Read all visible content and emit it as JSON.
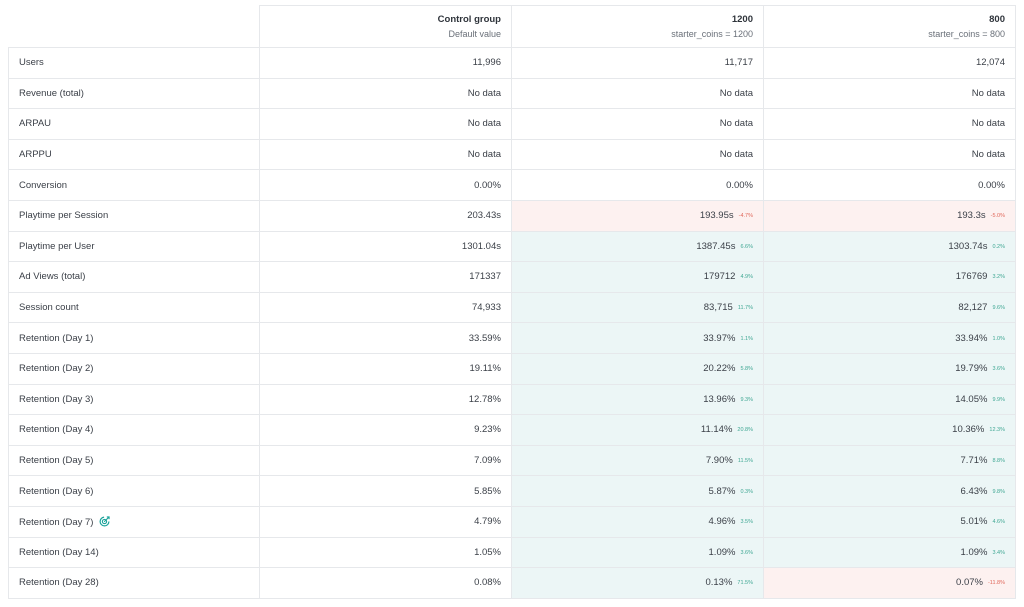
{
  "columns": [
    {
      "title": "Control group",
      "subtitle": "Default value"
    },
    {
      "title": "1200",
      "subtitle": "starter_coins = 1200"
    },
    {
      "title": "800",
      "subtitle": "starter_coins = 800"
    }
  ],
  "rows": [
    {
      "metric": "Users",
      "control": "11,996",
      "v1": "11,717",
      "d1": "",
      "s1": "",
      "v2": "12,074",
      "d2": "",
      "s2": ""
    },
    {
      "metric": "Revenue (total)",
      "control": "No data",
      "v1": "No data",
      "d1": "",
      "s1": "",
      "v2": "No data",
      "d2": "",
      "s2": ""
    },
    {
      "metric": "ARPAU",
      "control": "No data",
      "v1": "No data",
      "d1": "",
      "s1": "",
      "v2": "No data",
      "d2": "",
      "s2": ""
    },
    {
      "metric": "ARPPU",
      "control": "No data",
      "v1": "No data",
      "d1": "",
      "s1": "",
      "v2": "No data",
      "d2": "",
      "s2": ""
    },
    {
      "metric": "Conversion",
      "control": "0.00%",
      "v1": "0.00%",
      "d1": "",
      "s1": "",
      "v2": "0.00%",
      "d2": "",
      "s2": ""
    },
    {
      "metric": "Playtime per Session",
      "control": "203.43s",
      "v1": "193.95s",
      "d1": "-4.7%",
      "s1": "neg",
      "v2": "193.3s",
      "d2": "-5.0%",
      "s2": "neg"
    },
    {
      "metric": "Playtime per User",
      "control": "1301.04s",
      "v1": "1387.45s",
      "d1": "6.6%",
      "s1": "pos",
      "v2": "1303.74s",
      "d2": "0.2%",
      "s2": "pos"
    },
    {
      "metric": "Ad Views (total)",
      "control": "171337",
      "v1": "179712",
      "d1": "4.9%",
      "s1": "pos",
      "v2": "176769",
      "d2": "3.2%",
      "s2": "pos"
    },
    {
      "metric": "Session count",
      "control": "74,933",
      "v1": "83,715",
      "d1": "11.7%",
      "s1": "pos",
      "v2": "82,127",
      "d2": "9.6%",
      "s2": "pos"
    },
    {
      "metric": "Retention (Day 1)",
      "control": "33.59%",
      "v1": "33.97%",
      "d1": "1.1%",
      "s1": "pos",
      "v2": "33.94%",
      "d2": "1.0%",
      "s2": "pos"
    },
    {
      "metric": "Retention (Day 2)",
      "control": "19.11%",
      "v1": "20.22%",
      "d1": "5.8%",
      "s1": "pos",
      "v2": "19.79%",
      "d2": "3.6%",
      "s2": "pos"
    },
    {
      "metric": "Retention (Day 3)",
      "control": "12.78%",
      "v1": "13.96%",
      "d1": "9.3%",
      "s1": "pos",
      "v2": "14.05%",
      "d2": "9.9%",
      "s2": "pos"
    },
    {
      "metric": "Retention (Day 4)",
      "control": "9.23%",
      "v1": "11.14%",
      "d1": "20.8%",
      "s1": "pos",
      "v2": "10.36%",
      "d2": "12.3%",
      "s2": "pos"
    },
    {
      "metric": "Retention (Day 5)",
      "control": "7.09%",
      "v1": "7.90%",
      "d1": "11.5%",
      "s1": "pos",
      "v2": "7.71%",
      "d2": "8.8%",
      "s2": "pos"
    },
    {
      "metric": "Retention (Day 6)",
      "control": "5.85%",
      "v1": "5.87%",
      "d1": "0.3%",
      "s1": "pos",
      "v2": "6.43%",
      "d2": "9.8%",
      "s2": "pos"
    },
    {
      "metric": "Retention (Day 7)",
      "control": "4.79%",
      "v1": "4.96%",
      "d1": "3.5%",
      "s1": "pos",
      "v2": "5.01%",
      "d2": "4.6%",
      "s2": "pos",
      "icon": "target-icon"
    },
    {
      "metric": "Retention (Day 14)",
      "control": "1.05%",
      "v1": "1.09%",
      "d1": "3.6%",
      "s1": "pos",
      "v2": "1.09%",
      "d2": "3.4%",
      "s2": "pos"
    },
    {
      "metric": "Retention (Day 28)",
      "control": "0.08%",
      "v1": "0.13%",
      "d1": "71.5%",
      "s1": "pos",
      "v2": "0.07%",
      "d2": "-11.8%",
      "s2": "neg"
    }
  ],
  "colors": {
    "positive_bg": "#ecf6f6",
    "negative_bg": "#fdf1f0",
    "positive_text": "#3fa793",
    "negative_text": "#e0675a",
    "icon_accent": "#1aa39a"
  }
}
